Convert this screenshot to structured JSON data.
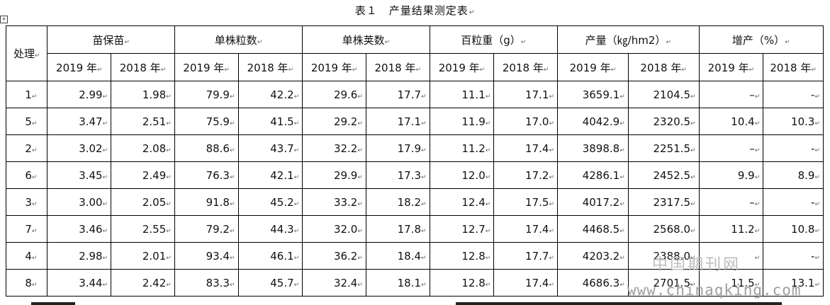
{
  "title": "表１　产量结果测定表",
  "header": {
    "rowlabel": "处理",
    "groups": [
      "苗保苗",
      "单株粒数",
      "单株荚数",
      "百粒重（g）",
      "产量（㎏/hm2）",
      "增产（%）"
    ],
    "years": [
      "2019 年",
      "2018 年"
    ]
  },
  "rows": [
    [
      "1",
      "2.99",
      "1.98",
      "79.9",
      "42.2",
      "29.6",
      "17.7",
      "11.1",
      "17.1",
      "3659.1",
      "2104.5",
      "–",
      "-"
    ],
    [
      "5",
      "3.47",
      "2.51",
      "75.9",
      "41.5",
      "29.2",
      "17.1",
      "11.9",
      "17.0",
      "4042.9",
      "2320.5",
      "10.4",
      "10.3"
    ],
    [
      "2",
      "3.02",
      "2.08",
      "88.6",
      "43.7",
      "32.2",
      "17.9",
      "11.2",
      "17.4",
      "3898.8",
      "2251.5",
      "–",
      "-"
    ],
    [
      "6",
      "3.45",
      "2.49",
      "76.3",
      "42.1",
      "29.9",
      "17.3",
      "12.0",
      "17.2",
      "4286.1",
      "2452.5",
      "9.9",
      "8.9"
    ],
    [
      "3",
      "3.00",
      "2.05",
      "91.8",
      "45.2",
      "33.2",
      "18.2",
      "12.4",
      "17.5",
      "4017.2",
      "2317.5",
      "–",
      "-"
    ],
    [
      "7",
      "3.46",
      "2.55",
      "79.2",
      "44.3",
      "32.0",
      "17.8",
      "12.7",
      "17.4",
      "4468.5",
      "2568.0",
      "11.2",
      "10.8"
    ],
    [
      "4",
      "2.98",
      "2.01",
      "93.4",
      "46.1",
      "36.2",
      "18.4",
      "12.8",
      "17.7",
      "4203.2",
      "2388.0",
      "",
      "-"
    ],
    [
      "8",
      "3.44",
      "2.42",
      "83.3",
      "45.7",
      "32.4",
      "18.1",
      "12.8",
      "17.4",
      "4686.3",
      "2701.5",
      "11.5",
      "13.1"
    ]
  ],
  "watermark": {
    "cn": "中国期刊网",
    "url": "www.chinaqking.com"
  }
}
